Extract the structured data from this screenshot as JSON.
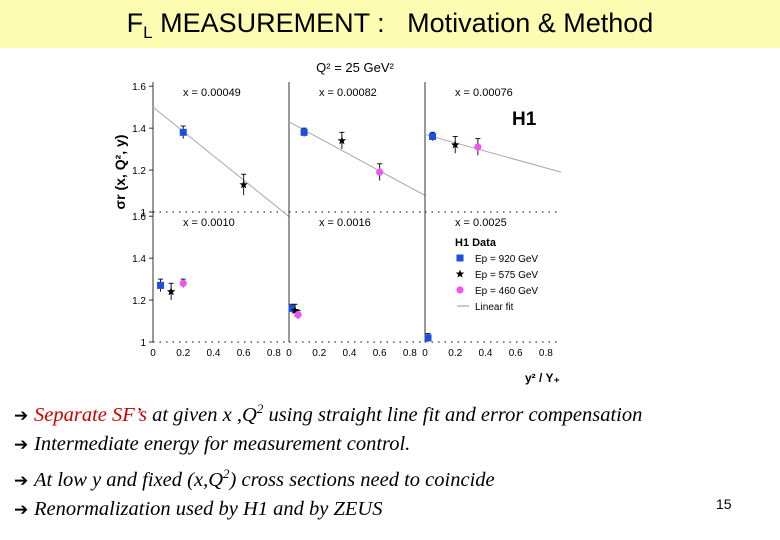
{
  "title": {
    "main": "F",
    "sub": "L",
    "rest": " MEASUREMENT :   Motivation & Method"
  },
  "chart_data": {
    "type": "scatter",
    "title": "Q² = 25 GeV²",
    "label": "H1",
    "xlabel": "y² / Y₊",
    "ylabel": "σr (x, Q², y)",
    "xlim": [
      0,
      0.9
    ],
    "ylim": [
      1.0,
      1.62
    ],
    "x_ticks": [
      "0",
      "0.2",
      "0.4",
      "0.6",
      "0.8"
    ],
    "y_ticks": [
      "1",
      "1.2",
      "1.4",
      "1.6"
    ],
    "legend_title": "H1 Data",
    "legend": [
      {
        "name": "Ep = 920 GeV",
        "marker": "square",
        "color": "#1a4fe0"
      },
      {
        "name": "Ep = 575 GeV",
        "marker": "star",
        "color": "#000000"
      },
      {
        "name": "Ep = 460 GeV",
        "marker": "circle",
        "color": "#ee55ee"
      },
      {
        "name": "Linear fit",
        "marker": "line",
        "color": "#a8a8a8"
      }
    ],
    "panels": [
      {
        "label": "x =  0.00049",
        "fit": [
          1.5,
          -0.58
        ],
        "points": [
          {
            "s": 0,
            "x": 0.2,
            "y": 1.38,
            "err": 0.03
          },
          {
            "s": 1,
            "x": 0.6,
            "y": 1.13,
            "err": 0.05
          }
        ]
      },
      {
        "label": "x =  0.00082",
        "fit": [
          1.43,
          -0.39
        ],
        "points": [
          {
            "s": 0,
            "x": 0.1,
            "y": 1.38,
            "err": 0.02
          },
          {
            "s": 1,
            "x": 0.35,
            "y": 1.34,
            "err": 0.04
          },
          {
            "s": 2,
            "x": 0.6,
            "y": 1.19,
            "err": 0.04
          }
        ]
      },
      {
        "label": "x =  0.00076",
        "fit": [
          1.37,
          -0.2
        ],
        "points": [
          {
            "s": 0,
            "x": 0.05,
            "y": 1.36,
            "err": 0.02
          },
          {
            "s": 1,
            "x": 0.2,
            "y": 1.32,
            "err": 0.04
          },
          {
            "s": 2,
            "x": 0.35,
            "y": 1.31,
            "err": 0.04
          }
        ]
      },
      {
        "label": "x =  0.0010",
        "fit": null,
        "points": [
          {
            "s": 0,
            "x": 0.05,
            "y": 1.27,
            "err": 0.03
          },
          {
            "s": 1,
            "x": 0.12,
            "y": 1.24,
            "err": 0.04
          },
          {
            "s": 2,
            "x": 0.2,
            "y": 1.28,
            "err": 0.02
          }
        ]
      },
      {
        "label": "x =  0.0016",
        "fit": null,
        "points": [
          {
            "s": 0,
            "x": 0.02,
            "y": 1.16,
            "err": 0.02
          },
          {
            "s": 1,
            "x": 0.04,
            "y": 1.15,
            "err": 0.03
          },
          {
            "s": 2,
            "x": 0.06,
            "y": 1.13,
            "err": 0.02
          }
        ]
      },
      {
        "label": "x =  0.0025",
        "fit": null,
        "points": [
          {
            "s": 0,
            "x": 0.02,
            "y": 1.02,
            "err": 0.02
          }
        ]
      }
    ]
  },
  "bullets": [
    {
      "highlight": "Separate SF’s",
      "text": " at given  x ,Q",
      "sup": "2",
      "tail": " using straight line fit and error compensation"
    },
    {
      "highlight": "",
      "text": "Intermediate energy for measurement control.",
      "sup": "",
      "tail": ""
    },
    {
      "highlight": "",
      "text": "At low y and fixed (x,Q",
      "sup": "2",
      "tail": ")  cross sections need to coincide"
    },
    {
      "highlight": "",
      "text": "Renormalization used by H1 and by ZEUS",
      "sup": "",
      "tail": ""
    }
  ],
  "arrow_glyph": "➔",
  "page_number": "15"
}
